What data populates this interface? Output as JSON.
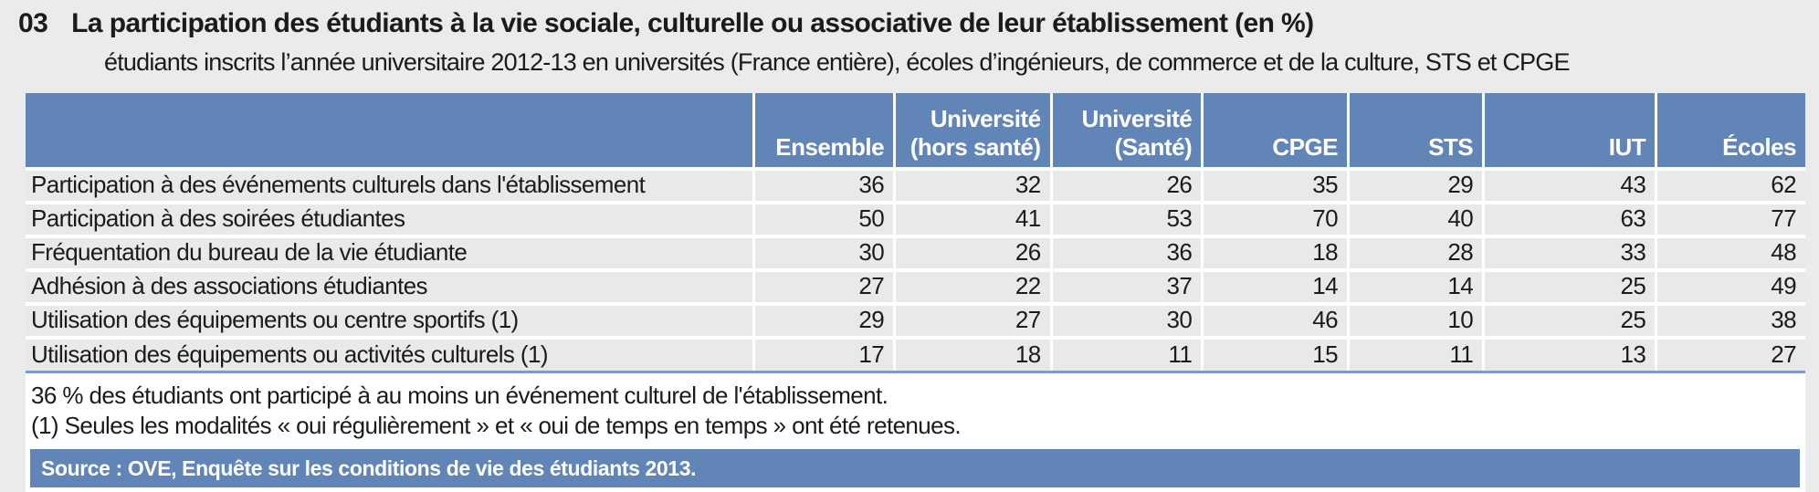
{
  "figure": {
    "number": "03",
    "title": "La participation des étudiants à la vie sociale, culturelle ou associative de leur établissement (en %)",
    "subtitle": "étudiants inscrits l’année universitaire 2012-13 en universités (France entière), écoles d’ingénieurs, de commerce et de la culture, STS et CPGE"
  },
  "table": {
    "corner_label": "",
    "label_col_width": "41%",
    "columns": [
      {
        "label": "Ensemble",
        "width": "7.9%"
      },
      {
        "label": "Université\n(hors santé)",
        "width": "8.8%"
      },
      {
        "label": "Université\n(Santé)",
        "width": "8.5%"
      },
      {
        "label": "CPGE",
        "width": "8.2%"
      },
      {
        "label": "STS",
        "width": "7.6%"
      },
      {
        "label": "IUT",
        "width": "9.7%"
      },
      {
        "label": "Écoles",
        "width": "8.3%"
      }
    ],
    "rows": [
      {
        "label": "Participation à des événements culturels dans l'établissement",
        "values": [
          36,
          32,
          26,
          35,
          29,
          43,
          62
        ]
      },
      {
        "label": "Participation à des soirées étudiantes",
        "values": [
          50,
          41,
          53,
          70,
          40,
          63,
          77
        ]
      },
      {
        "label": "Fréquentation du bureau de la vie étudiante",
        "values": [
          30,
          26,
          36,
          18,
          28,
          33,
          48
        ]
      },
      {
        "label": "Adhésion à des associations étudiantes",
        "values": [
          27,
          22,
          37,
          14,
          14,
          25,
          49
        ]
      },
      {
        "label": "Utilisation des équipements ou centre sportifs (1)",
        "values": [
          29,
          27,
          30,
          46,
          10,
          25,
          38
        ]
      },
      {
        "label": "Utilisation des équipements ou activités culturels (1)",
        "values": [
          17,
          18,
          11,
          15,
          11,
          13,
          27
        ]
      }
    ]
  },
  "notes": [
    "36 % des étudiants ont participé à au moins un événement culturel de l'établissement.",
    "(1) Seules les modalités « oui régulièrement » et « oui de temps en temps » ont été retenues."
  ],
  "source": "Source : OVE, Enquête sur les conditions de vie des étudiants 2013.",
  "colors": {
    "header_blue": "#6285B8",
    "underline_blue": "#7D9DC9",
    "row_gray": "#E9E9E9",
    "page_gray": "#EBEBEB"
  },
  "chart_data": {
    "type": "table",
    "title": "La participation des étudiants à la vie sociale, culturelle ou associative de leur établissement (en %)",
    "categories": [
      "Ensemble",
      "Université (hors santé)",
      "Université (Santé)",
      "CPGE",
      "STS",
      "IUT",
      "Écoles"
    ],
    "series": [
      {
        "name": "Participation à des événements culturels dans l'établissement",
        "values": [
          36,
          32,
          26,
          35,
          29,
          43,
          62
        ]
      },
      {
        "name": "Participation à des soirées étudiantes",
        "values": [
          50,
          41,
          53,
          70,
          40,
          63,
          77
        ]
      },
      {
        "name": "Fréquentation du bureau de la vie étudiante",
        "values": [
          30,
          26,
          36,
          18,
          28,
          33,
          48
        ]
      },
      {
        "name": "Adhésion à des associations étudiantes",
        "values": [
          27,
          22,
          37,
          14,
          14,
          25,
          49
        ]
      },
      {
        "name": "Utilisation des équipements ou centre sportifs (1)",
        "values": [
          29,
          27,
          30,
          46,
          10,
          25,
          38
        ]
      },
      {
        "name": "Utilisation des équipements ou activités culturels (1)",
        "values": [
          17,
          18,
          11,
          15,
          11,
          13,
          27
        ]
      }
    ]
  }
}
